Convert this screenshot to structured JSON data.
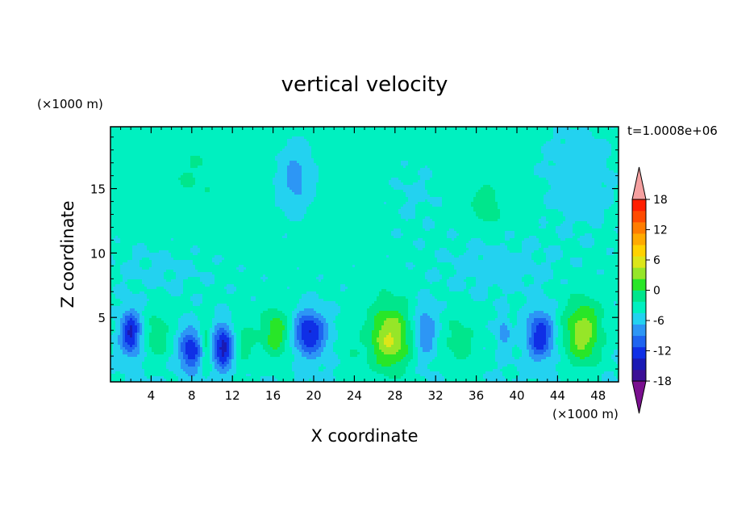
{
  "chart_data": {
    "type": "heatmap",
    "title": "vertical velocity",
    "xlabel": "X coordinate",
    "ylabel": "Z coordinate",
    "x_unit_label": "(×1000 m)",
    "y_unit_label": "(×1000 m)",
    "time_label": "t=1.0008e+06",
    "xlim": [
      0,
      50
    ],
    "ylim": [
      0,
      19.8
    ],
    "x_ticks": [
      "4",
      "8",
      "12",
      "16",
      "20",
      "24",
      "28",
      "32",
      "36",
      "40",
      "44",
      "48"
    ],
    "x_tick_values": [
      4,
      8,
      12,
      16,
      20,
      24,
      28,
      32,
      36,
      40,
      44,
      48
    ],
    "y_ticks": [
      "5",
      "10",
      "15"
    ],
    "y_tick_values": [
      5,
      10,
      15
    ],
    "colorbar": {
      "range": [
        -21,
        21
      ],
      "step": 3,
      "labels": [
        "18",
        "12",
        "6",
        "0",
        "-6",
        "-12",
        "-18"
      ],
      "label_values": [
        18,
        12,
        6,
        0,
        -6,
        -12,
        -18
      ],
      "colors": [
        "#7a0f8f",
        "#3b0f96",
        "#1a1ab4",
        "#0f2fe6",
        "#1e64f0",
        "#2d96f5",
        "#23d2f0",
        "#00f0c0",
        "#00e68c",
        "#28e628",
        "#96e628",
        "#dce619",
        "#ffd200",
        "#ffaa00",
        "#ff7d00",
        "#ff4b00",
        "#ff1e00",
        "#f5a0a0"
      ]
    },
    "background_value": 1.0,
    "features": [
      {
        "x": 2.0,
        "z": 3.8,
        "sx": 0.7,
        "sz": 1.2,
        "w": -13
      },
      {
        "x": 4.6,
        "z": 3.5,
        "sx": 0.9,
        "sz": 1.3,
        "w": 5
      },
      {
        "x": 7.9,
        "z": 2.5,
        "sx": 0.8,
        "sz": 1.1,
        "w": -12
      },
      {
        "x": 9.4,
        "z": 3.0,
        "sx": 0.4,
        "sz": 1.3,
        "w": 6
      },
      {
        "x": 11.1,
        "z": 2.7,
        "sx": 0.7,
        "sz": 1.2,
        "w": -14
      },
      {
        "x": 13.2,
        "z": 3.0,
        "sx": 0.9,
        "sz": 1.4,
        "w": 4
      },
      {
        "x": 16.3,
        "z": 3.8,
        "sx": 1.0,
        "sz": 1.4,
        "w": 8
      },
      {
        "x": 19.6,
        "z": 3.8,
        "sx": 1.1,
        "sz": 1.2,
        "w": -13
      },
      {
        "x": 23.6,
        "z": 2.3,
        "sx": 0.9,
        "sz": 1.1,
        "w": 2
      },
      {
        "x": 27.5,
        "z": 3.4,
        "sx": 1.5,
        "sz": 1.9,
        "w": 12
      },
      {
        "x": 31.0,
        "z": 4.0,
        "sx": 0.8,
        "sz": 1.4,
        "w": -7
      },
      {
        "x": 34.3,
        "z": 3.0,
        "sx": 1.3,
        "sz": 1.6,
        "w": 4
      },
      {
        "x": 38.7,
        "z": 3.8,
        "sx": 0.4,
        "sz": 0.8,
        "w": -6
      },
      {
        "x": 42.3,
        "z": 3.6,
        "sx": 0.9,
        "sz": 1.3,
        "w": -12
      },
      {
        "x": 46.5,
        "z": 3.8,
        "sx": 1.3,
        "sz": 1.8,
        "w": 11
      },
      {
        "x": 18.2,
        "z": 15.8,
        "sx": 1.2,
        "sz": 1.8,
        "w": -5
      },
      {
        "x": 36.8,
        "z": 14.3,
        "sx": 1.3,
        "sz": 0.9,
        "w": 3
      },
      {
        "x": 37.2,
        "z": 12.8,
        "sx": 1.0,
        "sz": 0.8,
        "w": 2.5
      },
      {
        "x": 30.0,
        "z": 14.5,
        "sx": 2.5,
        "sz": 2.5,
        "w": -1.2
      },
      {
        "x": 8.0,
        "z": 16.0,
        "sx": 3.0,
        "sz": 3.0,
        "w": 2
      },
      {
        "x": 46.0,
        "z": 16.0,
        "sx": 3.0,
        "sz": 3.5,
        "w": -2
      },
      {
        "x": 1.0,
        "z": 17.0,
        "sx": 1.2,
        "sz": 2.5,
        "w": 1
      },
      {
        "x": 38.0,
        "z": 9.0,
        "sx": 4.0,
        "sz": 1.5,
        "w": -2.0
      },
      {
        "x": 5.0,
        "z": 9.0,
        "sx": 4.0,
        "sz": 1.5,
        "w": -1.5
      }
    ]
  }
}
